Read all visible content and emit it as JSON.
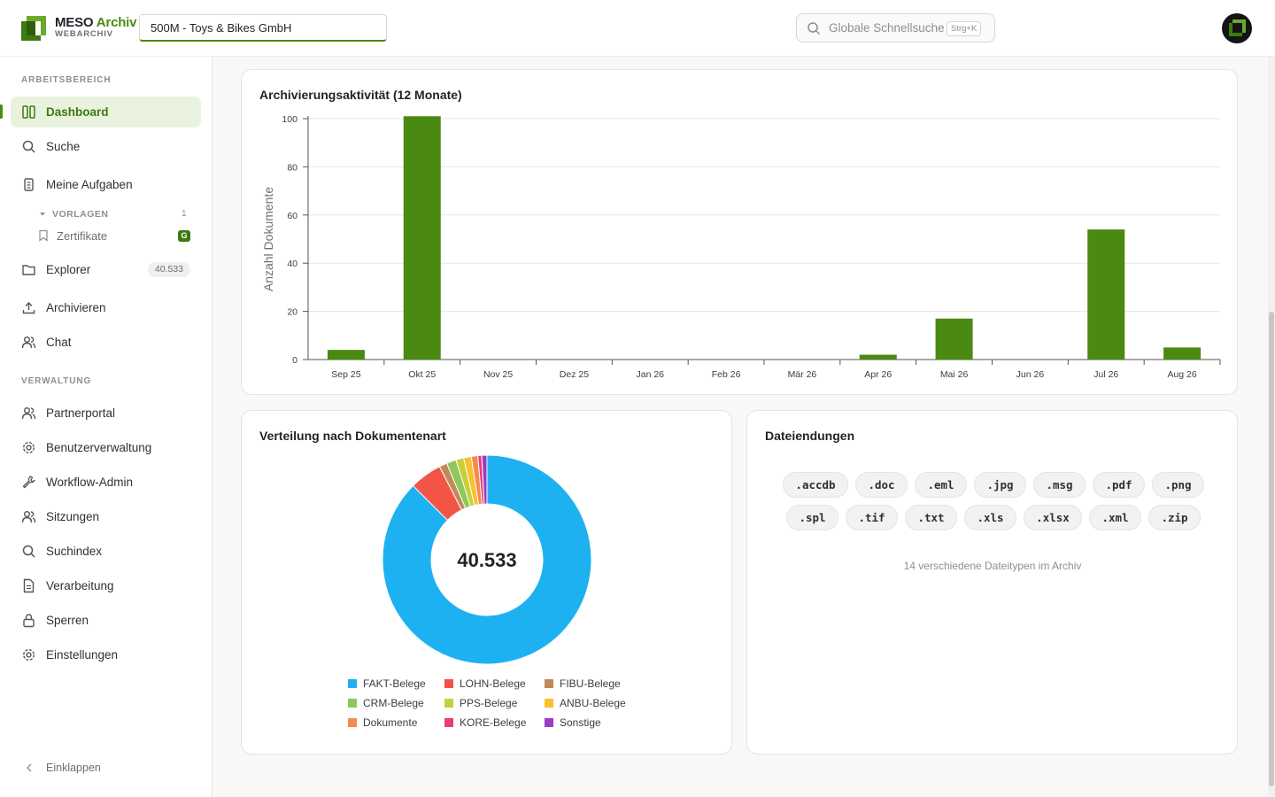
{
  "app": {
    "title_main": "MESO ",
    "title_accent": "Archiv",
    "subtitle": "WEBARCHIV"
  },
  "header": {
    "tenant": "500M - Toys & Bikes GmbH",
    "search_placeholder": "Globale Schnellsuche",
    "search_shortcut": "Strg+K"
  },
  "sidebar": {
    "section_workspace": "ARBEITSBEREICH",
    "section_admin": "VERWALTUNG",
    "dashboard": "Dashboard",
    "suche": "Suche",
    "aufgaben": "Meine Aufgaben",
    "vorlagen_group": "VORLAGEN",
    "vorlagen_count": "1",
    "zertifikate": "Zertifikate",
    "zertifikate_badge": "G",
    "explorer": "Explorer",
    "explorer_count": "40.533",
    "archivieren": "Archivieren",
    "chat": "Chat",
    "partnerportal": "Partnerportal",
    "benutzerverwaltung": "Benutzerverwaltung",
    "workflow_admin": "Workflow-Admin",
    "sitzungen": "Sitzungen",
    "suchindex": "Suchindex",
    "verarbeitung": "Verarbeitung",
    "sperren": "Sperren",
    "einstellungen": "Einstellungen",
    "collapse": "Einklappen"
  },
  "activity": {
    "title": "Archivierungsaktivität (12 Monate)"
  },
  "distribution": {
    "title": "Verteilung nach Dokumentenart",
    "total": "40.533"
  },
  "extensions": {
    "title": "Dateiendungen",
    "row1": [
      ".accdb",
      ".doc",
      ".eml",
      ".jpg",
      ".msg",
      ".pdf",
      ".png"
    ],
    "row2": [
      ".spl",
      ".tif",
      ".txt",
      ".xls",
      ".xlsx",
      ".xml",
      ".zip"
    ],
    "summary": "14 verschiedene Dateitypen im Archiv"
  },
  "chart_data": [
    {
      "type": "bar",
      "title": "Archivierungsaktivität (12 Monate)",
      "xlabel": "",
      "ylabel": "Anzahl Dokumente",
      "ylim": [
        0,
        100
      ],
      "yticks": [
        0,
        20,
        40,
        60,
        80,
        100
      ],
      "grid": true,
      "color": "#4a8a12",
      "categories": [
        "Sep 25",
        "Okt 25",
        "Nov 25",
        "Dez 25",
        "Jan 26",
        "Feb 26",
        "Mär 26",
        "Apr 26",
        "Mai 26",
        "Jun 26",
        "Jul 26",
        "Aug 26"
      ],
      "values": [
        4,
        101,
        0,
        0,
        0,
        0,
        0,
        2,
        17,
        0,
        54,
        5
      ]
    },
    {
      "type": "pie",
      "title": "Verteilung nach Dokumentenart",
      "center_label": "40.533",
      "legend_position": "bottom",
      "slices": [
        {
          "name": "FAKT-Belege",
          "fraction": 0.875,
          "color": "#1eb1f2"
        },
        {
          "name": "LOHN-Belege",
          "fraction": 0.05,
          "color": "#f25446"
        },
        {
          "name": "FIBU-Belege",
          "fraction": 0.012,
          "color": "#c08a5a"
        },
        {
          "name": "CRM-Belege",
          "fraction": 0.015,
          "color": "#8ec85a"
        },
        {
          "name": "PPS-Belege",
          "fraction": 0.012,
          "color": "#c5d03a"
        },
        {
          "name": "ANBU-Belege",
          "fraction": 0.012,
          "color": "#fbc02d"
        },
        {
          "name": "Dokumente",
          "fraction": 0.01,
          "color": "#f58a4f"
        },
        {
          "name": "KORE-Belege",
          "fraction": 0.006,
          "color": "#ec3a7a"
        },
        {
          "name": "Sonstige",
          "fraction": 0.008,
          "color": "#9c3bc4"
        }
      ]
    }
  ]
}
